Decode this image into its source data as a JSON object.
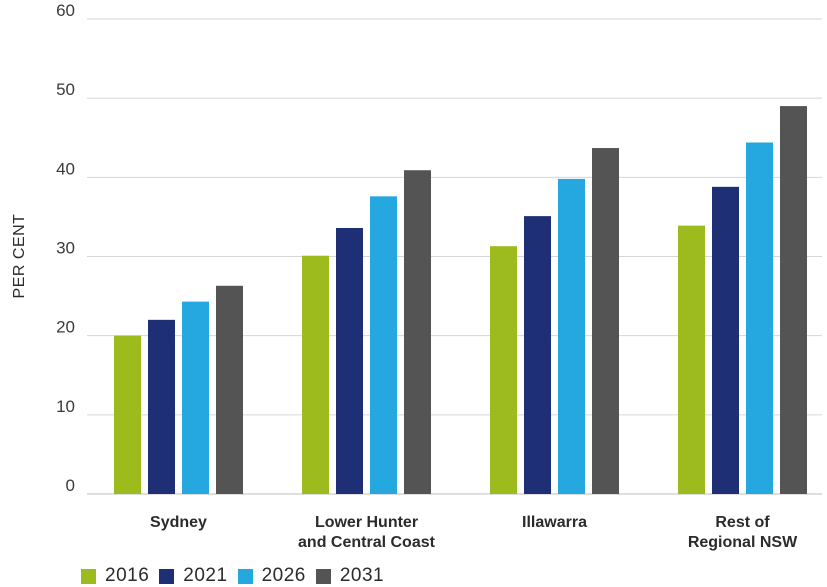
{
  "chart_data": {
    "type": "bar",
    "ylabel": "PER CENT",
    "xlabel": "",
    "ylim": [
      0,
      60
    ],
    "yticks": [
      0,
      10,
      20,
      30,
      40,
      50,
      60
    ],
    "grid": true,
    "legend_position": "bottom-left",
    "categories": [
      [
        "Sydney"
      ],
      [
        "Lower Hunter",
        "and Central Coast"
      ],
      [
        "Illawarra"
      ],
      [
        "Rest of",
        "Regional NSW"
      ]
    ],
    "series": [
      {
        "name": "2016",
        "color": "#9dbb1c",
        "values": [
          20.0,
          30.1,
          31.3,
          33.9
        ]
      },
      {
        "name": "2021",
        "color": "#1e2f76",
        "values": [
          22.0,
          33.6,
          35.1,
          38.8
        ]
      },
      {
        "name": "2026",
        "color": "#25a8e0",
        "values": [
          24.3,
          37.6,
          39.8,
          44.4
        ]
      },
      {
        "name": "2031",
        "color": "#545454",
        "values": [
          26.3,
          40.9,
          43.7,
          49.0
        ]
      }
    ]
  }
}
